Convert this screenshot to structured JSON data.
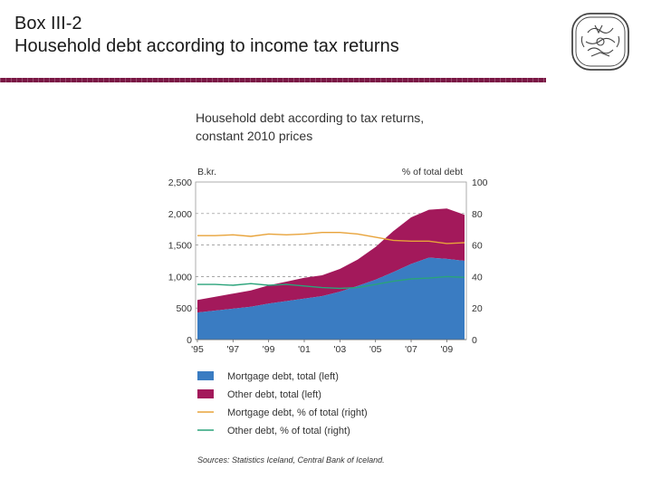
{
  "slide": {
    "title_line1": "Box III-2",
    "title_line2": "Household debt according to income tax returns"
  },
  "chart_data": {
    "type": "area",
    "title": "Household debt according to tax returns,",
    "subtitle": "constant 2010 prices",
    "left_axis": {
      "label": "B.kr.",
      "range": [
        0,
        2500
      ],
      "ticks": [
        "0",
        "500",
        "1,000",
        "1,500",
        "2,000",
        "2,500"
      ]
    },
    "right_axis": {
      "label": "% of total debt",
      "range": [
        0,
        100
      ],
      "ticks": [
        "0",
        "20",
        "40",
        "60",
        "80",
        "100"
      ]
    },
    "x_ticks": [
      "'95",
      "'97",
      "'99",
      "'01",
      "'03",
      "'05",
      "'07",
      "'09"
    ],
    "x": [
      1995,
      1996,
      1997,
      1998,
      1999,
      2000,
      2001,
      2002,
      2003,
      2004,
      2005,
      2006,
      2007,
      2008,
      2009,
      2010
    ],
    "grid": "dashed horizontal",
    "series": [
      {
        "name": "Mortgage debt, total (left)",
        "type": "area",
        "axis": "left",
        "color": "#3a7cc2",
        "values": [
          430,
          460,
          490,
          520,
          570,
          610,
          650,
          690,
          760,
          850,
          950,
          1070,
          1200,
          1300,
          1280,
          1250
        ]
      },
      {
        "name": "Other debt, total (left)",
        "type": "area",
        "axis": "left",
        "color": "#a3195b",
        "values": [
          200,
          220,
          240,
          260,
          290,
          310,
          330,
          330,
          360,
          420,
          520,
          650,
          740,
          760,
          800,
          730
        ]
      },
      {
        "name": "Mortgage debt, % of total (right)",
        "type": "line",
        "axis": "right",
        "color": "#e8a33a",
        "values": [
          66,
          66,
          66.5,
          65.5,
          67,
          66.5,
          67,
          68,
          68,
          67,
          65,
          63,
          62.5,
          62.5,
          61,
          61.5
        ]
      },
      {
        "name": "Other debt, % of total (right)",
        "type": "line",
        "axis": "right",
        "color": "#2aa37a",
        "values": [
          35,
          35,
          34.5,
          35.5,
          34.5,
          35,
          34,
          33,
          32.5,
          33,
          35,
          37,
          38.5,
          39,
          40,
          39.5
        ]
      }
    ],
    "source": "Sources: Statistics Iceland, Central Bank of Iceland."
  }
}
